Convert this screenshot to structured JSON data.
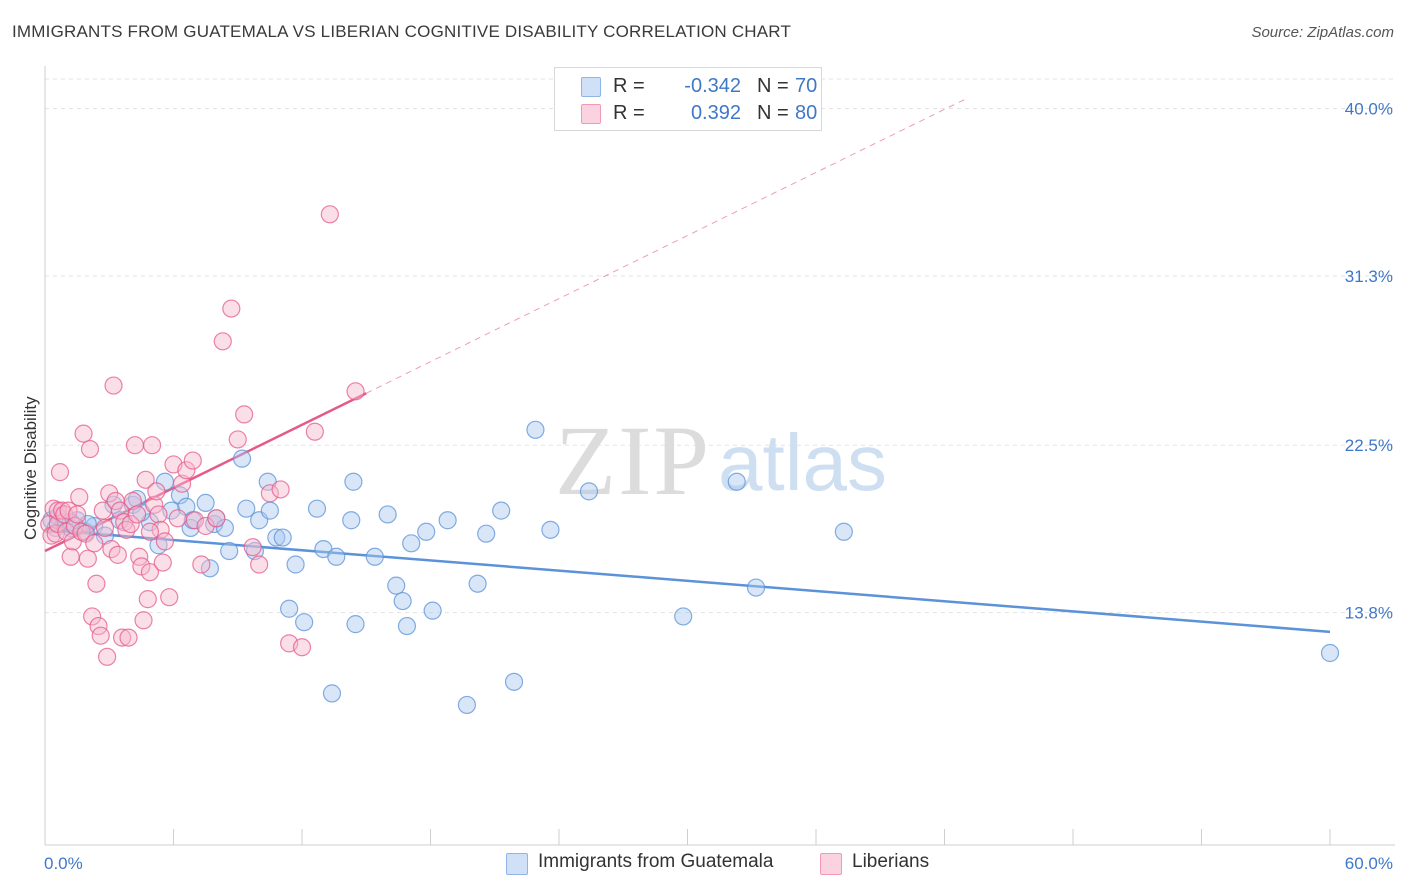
{
  "header": {
    "title": "IMMIGRANTS FROM GUATEMALA VS LIBERIAN COGNITIVE DISABILITY CORRELATION CHART",
    "source": "Source: ZipAtlas.com"
  },
  "watermark": {
    "zip": "ZIP",
    "atlas": "atlas"
  },
  "legend": {
    "rows": [
      {
        "r_label": "R =",
        "r_value": "-0.342",
        "n_label": "N =",
        "n_value": "70",
        "color": "#a8c8f0"
      },
      {
        "r_label": "R =",
        "r_value": "0.392",
        "n_label": "N =",
        "n_value": "80",
        "color": "#f7b8cc"
      }
    ]
  },
  "bottom_legend": {
    "items": [
      {
        "label": "Immigrants from Guatemala",
        "color": "#a8c8f0"
      },
      {
        "label": "Liberians",
        "color": "#f7b8cc"
      }
    ]
  },
  "chart_data": {
    "type": "scatter",
    "ylabel": "Cognitive Disability",
    "xlim": [
      0,
      60
    ],
    "ylim": [
      2.5,
      42
    ],
    "x_tick_labels": [
      "0.0%",
      "60.0%"
    ],
    "y_ticks": [
      {
        "value": 13.8,
        "label": "13.8%"
      },
      {
        "value": 22.5,
        "label": "22.5%"
      },
      {
        "value": 31.3,
        "label": "31.3%"
      },
      {
        "value": 40.0,
        "label": "40.0%"
      }
    ],
    "grid": true,
    "series": [
      {
        "name": "Immigrants from Guatemala",
        "color": "#5b92d8",
        "fill": "#a8c8f0",
        "trend": {
          "x0": 0,
          "y0": 18.1,
          "x1": 60,
          "y1": 12.8,
          "dashed_to": null
        },
        "points": [
          [
            0.3,
            18.6
          ],
          [
            0.5,
            18.2
          ],
          [
            0.6,
            18.8
          ],
          [
            0.9,
            18.5
          ],
          [
            1.2,
            18.2
          ],
          [
            1.5,
            18.6
          ],
          [
            1.9,
            18.0
          ],
          [
            2.3,
            18.3
          ],
          [
            2.8,
            17.8
          ],
          [
            3.5,
            18.6
          ],
          [
            4.1,
            19.4
          ],
          [
            3.2,
            19.4
          ],
          [
            4.3,
            19.7
          ],
          [
            4.9,
            18.5
          ],
          [
            5.3,
            17.3
          ],
          [
            5.6,
            20.6
          ],
          [
            5.9,
            19.1
          ],
          [
            6.3,
            19.9
          ],
          [
            6.6,
            19.3
          ],
          [
            6.8,
            18.2
          ],
          [
            7.5,
            19.5
          ],
          [
            7.9,
            18.4
          ],
          [
            7.7,
            16.1
          ],
          [
            8.0,
            18.7
          ],
          [
            8.6,
            17.0
          ],
          [
            9.2,
            21.8
          ],
          [
            8.4,
            18.2
          ],
          [
            9.4,
            19.2
          ],
          [
            10.0,
            18.6
          ],
          [
            10.4,
            20.6
          ],
          [
            10.5,
            19.1
          ],
          [
            10.8,
            17.7
          ],
          [
            11.1,
            17.7
          ],
          [
            11.4,
            14.0
          ],
          [
            11.7,
            16.3
          ],
          [
            12.1,
            13.3
          ],
          [
            12.7,
            19.2
          ],
          [
            13.0,
            17.1
          ],
          [
            13.4,
            9.6
          ],
          [
            13.6,
            16.7
          ],
          [
            14.4,
            20.6
          ],
          [
            14.3,
            18.6
          ],
          [
            14.5,
            13.2
          ],
          [
            15.4,
            16.7
          ],
          [
            16.0,
            18.9
          ],
          [
            16.4,
            15.2
          ],
          [
            16.7,
            14.4
          ],
          [
            16.9,
            13.1
          ],
          [
            17.1,
            17.4
          ],
          [
            17.8,
            18.0
          ],
          [
            18.1,
            13.9
          ],
          [
            18.8,
            18.6
          ],
          [
            19.7,
            9.0
          ],
          [
            20.2,
            15.3
          ],
          [
            20.6,
            17.9
          ],
          [
            21.3,
            19.1
          ],
          [
            21.9,
            10.2
          ],
          [
            22.9,
            23.3
          ],
          [
            23.6,
            18.1
          ],
          [
            25.4,
            20.1
          ],
          [
            29.8,
            13.6
          ],
          [
            32.3,
            20.6
          ],
          [
            33.2,
            15.1
          ],
          [
            37.3,
            18.0
          ],
          [
            60.0,
            11.7
          ],
          [
            1.2,
            18.5
          ],
          [
            2.0,
            18.4
          ],
          [
            4.5,
            19.0
          ],
          [
            6.9,
            18.6
          ],
          [
            9.8,
            17.0
          ]
        ]
      },
      {
        "name": "Liberians",
        "color": "#e55a8a",
        "fill": "#f7b8cc",
        "trend": {
          "x0": 0,
          "y0": 17.0,
          "x1": 15.0,
          "y1": 25.2,
          "dashed_to": {
            "x": 43,
            "y": 40.5
          }
        },
        "points": [
          [
            0.2,
            18.4
          ],
          [
            0.3,
            17.8
          ],
          [
            0.4,
            19.2
          ],
          [
            0.5,
            17.9
          ],
          [
            0.6,
            18.4
          ],
          [
            0.6,
            19.1
          ],
          [
            0.7,
            21.1
          ],
          [
            0.8,
            19.1
          ],
          [
            0.9,
            18.9
          ],
          [
            1.0,
            18.0
          ],
          [
            1.1,
            19.1
          ],
          [
            1.2,
            16.7
          ],
          [
            1.3,
            17.5
          ],
          [
            1.4,
            18.3
          ],
          [
            1.5,
            18.9
          ],
          [
            1.6,
            19.8
          ],
          [
            1.7,
            18.0
          ],
          [
            1.8,
            23.1
          ],
          [
            1.9,
            17.9
          ],
          [
            2.0,
            16.6
          ],
          [
            2.1,
            22.3
          ],
          [
            2.2,
            13.6
          ],
          [
            2.3,
            17.4
          ],
          [
            2.4,
            15.3
          ],
          [
            2.5,
            13.1
          ],
          [
            2.6,
            12.6
          ],
          [
            2.7,
            19.1
          ],
          [
            2.8,
            18.2
          ],
          [
            2.9,
            11.5
          ],
          [
            3.0,
            20.0
          ],
          [
            3.1,
            17.1
          ],
          [
            3.2,
            25.6
          ],
          [
            3.3,
            19.6
          ],
          [
            3.4,
            16.8
          ],
          [
            3.5,
            19.1
          ],
          [
            3.6,
            12.5
          ],
          [
            3.7,
            18.5
          ],
          [
            3.8,
            18.1
          ],
          [
            3.9,
            12.5
          ],
          [
            4.0,
            18.4
          ],
          [
            4.1,
            19.6
          ],
          [
            4.2,
            22.5
          ],
          [
            4.3,
            18.9
          ],
          [
            4.4,
            16.7
          ],
          [
            4.5,
            16.2
          ],
          [
            4.6,
            13.4
          ],
          [
            4.7,
            20.7
          ],
          [
            4.8,
            14.5
          ],
          [
            4.9,
            15.9
          ],
          [
            5.0,
            22.5
          ],
          [
            5.1,
            19.4
          ],
          [
            5.2,
            20.1
          ],
          [
            5.3,
            18.9
          ],
          [
            5.4,
            18.1
          ],
          [
            5.5,
            16.4
          ],
          [
            5.6,
            17.5
          ],
          [
            5.8,
            14.6
          ],
          [
            6.0,
            21.5
          ],
          [
            6.2,
            18.7
          ],
          [
            6.4,
            20.5
          ],
          [
            6.6,
            21.2
          ],
          [
            6.9,
            21.7
          ],
          [
            7.0,
            18.6
          ],
          [
            7.3,
            16.3
          ],
          [
            7.5,
            18.3
          ],
          [
            8.0,
            18.7
          ],
          [
            8.3,
            27.9
          ],
          [
            8.7,
            29.6
          ],
          [
            9.0,
            22.8
          ],
          [
            9.3,
            24.1
          ],
          [
            9.7,
            17.2
          ],
          [
            10.0,
            16.3
          ],
          [
            10.5,
            20.0
          ],
          [
            11.0,
            20.2
          ],
          [
            11.4,
            12.2
          ],
          [
            12.0,
            12.0
          ],
          [
            12.6,
            23.2
          ],
          [
            13.3,
            34.5
          ],
          [
            14.5,
            25.3
          ],
          [
            4.9,
            18.0
          ]
        ]
      }
    ]
  }
}
